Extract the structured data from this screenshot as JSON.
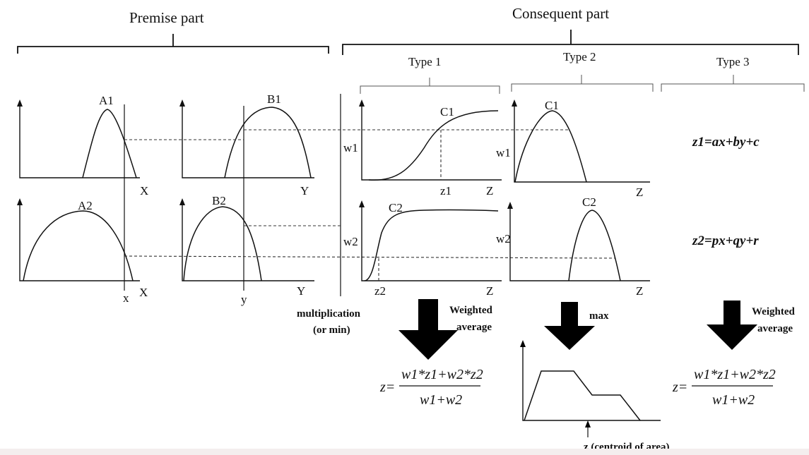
{
  "headers": {
    "premise": "Premise part",
    "consequent": "Consequent part",
    "type1": "Type 1",
    "type2": "Type 2",
    "type3": "Type 3"
  },
  "sets": {
    "a1": "A1",
    "a2": "A2",
    "b1": "B1",
    "b2": "B2",
    "c1_type1": "C1",
    "c2_type1": "C2",
    "c1_type2": "C1",
    "c2_type2": "C2"
  },
  "axes": {
    "x1": "X",
    "x2": "X",
    "y1": "Y",
    "y2": "Y",
    "z1": "Z",
    "z2": "Z",
    "z3": "Z",
    "z4": "Z"
  },
  "inputs": {
    "x": "x",
    "y": "y"
  },
  "weights": {
    "w1_t1": "w1",
    "w2_t1": "w2",
    "w1_t2": "w1",
    "w2_t2": "w2"
  },
  "crisp": {
    "z1": "z1",
    "z2": "z2"
  },
  "equations": {
    "rule1": "z1=ax+by+c",
    "rule2": "z2=px+qy+r"
  },
  "operators": {
    "multiplication": "multiplication",
    "or_min": "(or min)",
    "weighted1_a": "Weighted",
    "weighted1_b": "average",
    "max": "max",
    "weighted3_a": "Weighted",
    "weighted3_b": "average"
  },
  "formula": {
    "lhs": "z=",
    "numerator": "w1*z1+w2*z2",
    "denominator": "w1+w2"
  },
  "centroid_label": "z (centroid of area)"
}
